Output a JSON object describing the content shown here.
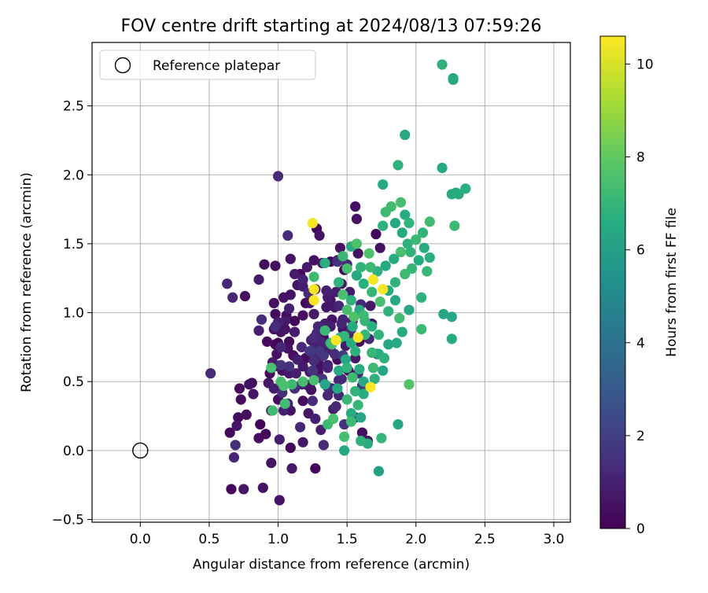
{
  "chart_data": {
    "type": "scatter",
    "title": "FOV centre drift starting at 2024/08/13 07:59:26",
    "xlabel": "Angular distance from reference (arcmin)",
    "ylabel": "Rotation from reference (arcmin)",
    "xlim": [
      -0.35,
      3.12
    ],
    "ylim": [
      -0.52,
      2.96
    ],
    "x_ticks": [
      0.0,
      0.5,
      1.0,
      1.5,
      2.0,
      2.5,
      3.0
    ],
    "y_ticks": [
      -0.5,
      0.0,
      0.5,
      1.0,
      1.5,
      2.0,
      2.5
    ],
    "x_tick_labels": [
      "0.0",
      "0.5",
      "1.0",
      "1.5",
      "2.0",
      "2.5",
      "3.0"
    ],
    "y_tick_labels": [
      "−0.5",
      "0.0",
      "0.5",
      "1.0",
      "1.5",
      "2.0",
      "2.5"
    ],
    "grid": true,
    "legend": {
      "placement": "top-left",
      "entries": [
        "Reference platepar"
      ]
    },
    "reference_point": {
      "x": 0.0,
      "y": 0.0,
      "label": "Reference platepar"
    },
    "colorbar": {
      "label": "Hours from first FF file",
      "range": [
        0,
        10.6
      ],
      "ticks": [
        0,
        2,
        4,
        6,
        8,
        10
      ],
      "tick_labels": [
        "0",
        "2",
        "4",
        "6",
        "8",
        "10"
      ],
      "colormap": "viridis"
    },
    "points": [
      [
        1.26,
        0.55,
        0.9
      ],
      [
        1.26,
        0.65,
        1.4
      ],
      [
        0.98,
        0.9,
        1.4
      ],
      [
        0.88,
        0.95,
        1.4
      ],
      [
        1.3,
        0.61,
        0.5
      ],
      [
        1.31,
        0.68,
        0.9
      ],
      [
        0.97,
        0.61,
        0.2
      ],
      [
        1.23,
        0.46,
        0.6
      ],
      [
        1.38,
        0.9,
        0.9
      ],
      [
        1.29,
        0.64,
        0.2
      ],
      [
        1.24,
        0.8,
        0.9
      ],
      [
        1.23,
        0.71,
        0.1
      ],
      [
        1.08,
        0.79,
        0.2
      ],
      [
        1.02,
        0.62,
        1.6
      ],
      [
        1.26,
        0.7,
        1.1
      ],
      [
        1.28,
        0.74,
        0.5
      ],
      [
        1.41,
        0.7,
        1.4
      ],
      [
        1.28,
        0.8,
        0.9
      ],
      [
        1.25,
        0.73,
        1.3
      ],
      [
        1.12,
        0.86,
        0.9
      ],
      [
        1.26,
        0.82,
        1.3
      ],
      [
        1.43,
        0.66,
        0.3
      ],
      [
        1.17,
        0.75,
        1.3
      ],
      [
        1.23,
        0.72,
        1.8
      ],
      [
        1.05,
        0.88,
        0.6
      ],
      [
        1.17,
        0.48,
        1.0
      ],
      [
        1.34,
        0.92,
        0.8
      ],
      [
        1.38,
        0.73,
        1.0
      ],
      [
        1.33,
        0.82,
        0.1
      ],
      [
        1.31,
        0.79,
        1.1
      ],
      [
        1.28,
        0.85,
        1.2
      ],
      [
        0.73,
        0.37,
        0.3
      ],
      [
        0.82,
        0.41,
        0.6
      ],
      [
        0.95,
        0.29,
        0.9
      ],
      [
        0.91,
        0.12,
        0.2
      ],
      [
        0.7,
        0.18,
        0.6
      ],
      [
        1.46,
        0.52,
        1.2
      ],
      [
        1.36,
        0.4,
        1.2
      ],
      [
        1.18,
        0.61,
        0.7
      ],
      [
        1.2,
        0.67,
        0.4
      ],
      [
        1.02,
        0.75,
        1.2
      ],
      [
        1.12,
        0.94,
        0.1
      ],
      [
        1.23,
        1.07,
        0.5
      ],
      [
        1.26,
        0.99,
        0.7
      ],
      [
        1.13,
        0.56,
        0.9
      ],
      [
        1.47,
        0.95,
        1.1
      ],
      [
        1.36,
        1.11,
        0.8
      ],
      [
        1.25,
        0.58,
        1.6
      ],
      [
        1.33,
        0.69,
        1.7
      ],
      [
        1.52,
        0.82,
        1.0
      ],
      [
        1.29,
        0.57,
        0.4
      ],
      [
        1.24,
        0.72,
        1.0
      ],
      [
        1.29,
        0.9,
        1.2
      ],
      [
        1.07,
        0.74,
        0.5
      ],
      [
        1.08,
        0.61,
        1.5
      ],
      [
        1.11,
        0.69,
        0.4
      ],
      [
        1.23,
        0.57,
        0.8
      ],
      [
        1.39,
        0.95,
        0.6
      ],
      [
        1.32,
        0.77,
        1.0
      ],
      [
        1.3,
        0.72,
        1.7
      ],
      [
        0.72,
        0.45,
        0.3
      ],
      [
        0.79,
        0.48,
        0.5
      ],
      [
        0.93,
        0.49,
        0.7
      ],
      [
        1.0,
        0.37,
        0.4
      ],
      [
        1.07,
        0.34,
        1.0
      ],
      [
        1.16,
        0.17,
        1.2
      ],
      [
        0.69,
        0.04,
        1.4
      ],
      [
        0.97,
        0.88,
        0.5
      ],
      [
        1.0,
        0.93,
        1.0
      ],
      [
        1.06,
        0.98,
        0.4
      ],
      [
        1.2,
        1.07,
        0.2
      ],
      [
        1.18,
        1.19,
        0.9
      ],
      [
        1.22,
        1.14,
        1.3
      ],
      [
        1.35,
        1.04,
        0.7
      ],
      [
        1.38,
        1.09,
        0.5
      ],
      [
        1.42,
        1.15,
        0.9
      ],
      [
        1.46,
        1.21,
        0.7
      ],
      [
        1.44,
        1.05,
        1.1
      ],
      [
        1.47,
        0.88,
        0.5
      ],
      [
        1.36,
        0.6,
        1.1
      ],
      [
        1.32,
        0.52,
        1.6
      ],
      [
        1.24,
        0.44,
        0.4
      ],
      [
        1.18,
        0.36,
        0.3
      ],
      [
        1.22,
        0.27,
        0.7
      ],
      [
        1.27,
        0.23,
        1.0
      ],
      [
        1.31,
        0.15,
        0.9
      ],
      [
        1.33,
        0.04,
        1.3
      ],
      [
        1.09,
        0.02,
        0.2
      ],
      [
        1.01,
        0.08,
        0.9
      ],
      [
        0.86,
        0.09,
        0.4
      ],
      [
        0.65,
        0.13,
        0.2
      ],
      [
        0.71,
        0.24,
        0.3
      ],
      [
        1.4,
        0.3,
        0.9
      ],
      [
        1.44,
        0.4,
        1.1
      ],
      [
        1.51,
        0.58,
        0.3
      ],
      [
        1.56,
        0.67,
        0.7
      ],
      [
        1.59,
        0.79,
        0.4
      ],
      [
        1.54,
        0.94,
        0.9
      ],
      [
        1.6,
        1.06,
        1.2
      ],
      [
        1.52,
        1.15,
        0.8
      ],
      [
        1.48,
        1.31,
        0.3
      ],
      [
        1.43,
        1.38,
        0.6
      ],
      [
        1.38,
        1.37,
        0.2
      ],
      [
        1.32,
        1.36,
        0.7
      ],
      [
        1.26,
        1.38,
        0.5
      ],
      [
        1.21,
        1.33,
        0.8
      ],
      [
        1.18,
        1.24,
        1.0
      ],
      [
        1.14,
        1.2,
        0.6
      ],
      [
        1.09,
        1.13,
        0.5
      ],
      [
        1.08,
        1.03,
        1.0
      ],
      [
        1.05,
        0.94,
        0.8
      ],
      [
        1.02,
        0.86,
        0.6
      ],
      [
        1.0,
        0.78,
        0.2
      ],
      [
        0.99,
        0.7,
        0.5
      ],
      [
        0.96,
        0.64,
        0.8
      ],
      [
        0.94,
        0.56,
        0.3
      ],
      [
        0.97,
        0.45,
        0.9
      ],
      [
        1.03,
        0.42,
        1.4
      ],
      [
        1.09,
        0.29,
        0.6
      ],
      [
        0.92,
        0.79,
        0.3
      ],
      [
        0.86,
        0.87,
        1.0
      ],
      [
        0.97,
        1.07,
        0.4
      ],
      [
        1.04,
        1.11,
        0.6
      ],
      [
        0.76,
        1.12,
        0.4
      ],
      [
        0.67,
        1.11,
        1.2
      ],
      [
        0.63,
        1.21,
        1.1
      ],
      [
        0.86,
        1.24,
        0.8
      ],
      [
        0.98,
        1.34,
        0.4
      ],
      [
        1.09,
        1.39,
        0.6
      ],
      [
        1.07,
        1.56,
        1.3
      ],
      [
        1.28,
        1.61,
        0.2
      ],
      [
        1.3,
        1.56,
        0.6
      ],
      [
        1.45,
        1.47,
        0.5
      ],
      [
        1.43,
        1.37,
        1.5
      ],
      [
        1.5,
        1.35,
        1.3
      ],
      [
        1.58,
        1.43,
        0.5
      ],
      [
        1.57,
        1.68,
        0.5
      ],
      [
        1.56,
        1.77,
        0.5
      ],
      [
        1.71,
        1.57,
        0.2
      ],
      [
        1.74,
        1.47,
        0.5
      ],
      [
        1.67,
        1.05,
        0.7
      ],
      [
        1.68,
        0.92,
        0.5
      ],
      [
        1.66,
        0.81,
        1.2
      ],
      [
        1.72,
        0.7,
        1.4
      ],
      [
        1.58,
        0.56,
        1.1
      ],
      [
        1.61,
        0.47,
        1.6
      ],
      [
        1.44,
        0.51,
        1.1
      ],
      [
        1.39,
        0.45,
        0.8
      ],
      [
        1.36,
        0.62,
        0.9
      ],
      [
        1.34,
        0.76,
        0.2
      ],
      [
        1.49,
        0.76,
        0.8
      ],
      [
        1.46,
        0.92,
        1.1
      ],
      [
        1.41,
        1.04,
        0.7
      ],
      [
        1.35,
        1.16,
        1.0
      ],
      [
        1.27,
        1.17,
        0.4
      ],
      [
        1.16,
        1.28,
        0.2
      ],
      [
        1.12,
        1.28,
        0.8
      ],
      [
        0.9,
        1.35,
        0.3
      ],
      [
        1.0,
        1.99,
        1.3
      ],
      [
        0.98,
        0.99,
        0.3
      ],
      [
        1.18,
        0.98,
        0.5
      ],
      [
        1.14,
        0.66,
        0.9
      ],
      [
        1.03,
        0.58,
        0.5
      ],
      [
        1.2,
        0.48,
        0.6
      ],
      [
        0.98,
        0.77,
        0.2
      ],
      [
        0.77,
        0.26,
        0.4
      ],
      [
        0.81,
        0.49,
        0.3
      ],
      [
        0.87,
        0.19,
        0.1
      ],
      [
        0.89,
        -0.27,
        0.6
      ],
      [
        0.95,
        -0.09,
        0.6
      ],
      [
        1.01,
        -0.36,
        0.6
      ],
      [
        1.04,
        0.29,
        0.9
      ],
      [
        1.1,
        -0.13,
        0.7
      ],
      [
        0.75,
        -0.28,
        0.7
      ],
      [
        0.66,
        -0.28,
        0.2
      ],
      [
        0.68,
        -0.05,
        1.2
      ],
      [
        0.51,
        0.56,
        1.3
      ],
      [
        1.27,
        -0.13,
        0.2
      ],
      [
        1.18,
        0.06,
        0.7
      ],
      [
        1.25,
        0.36,
        1.3
      ],
      [
        1.36,
        0.46,
        1.4
      ],
      [
        1.42,
        0.32,
        1.2
      ],
      [
        1.48,
        0.19,
        1.5
      ],
      [
        1.56,
        0.24,
        1.0
      ],
      [
        1.61,
        0.13,
        0.4
      ],
      [
        1.65,
        0.07,
        0.6
      ],
      [
        1.53,
        0.88,
        1.4
      ],
      [
        1.47,
        0.69,
        1.9
      ],
      [
        1.12,
        0.45,
        1.4
      ],
      [
        1.08,
        0.56,
        0.7
      ],
      [
        1.47,
        1.13,
        7.5
      ],
      [
        1.53,
        1.09,
        6.8
      ],
      [
        1.59,
        1.02,
        6.5
      ],
      [
        1.62,
        0.98,
        7.2
      ],
      [
        1.54,
        0.9,
        6.6
      ],
      [
        1.45,
        0.82,
        6.9
      ],
      [
        1.39,
        0.77,
        7.3
      ],
      [
        1.49,
        0.66,
        6.4
      ],
      [
        1.56,
        0.72,
        6.8
      ],
      [
        1.63,
        0.84,
        7.0
      ],
      [
        1.68,
        0.9,
        6.7
      ],
      [
        1.73,
        0.84,
        6.9
      ],
      [
        1.8,
        0.77,
        6.3
      ],
      [
        1.86,
        0.78,
        6.6
      ],
      [
        1.9,
        0.86,
        6.5
      ],
      [
        1.88,
        0.96,
        7.3
      ],
      [
        1.8,
        1.01,
        6.8
      ],
      [
        1.74,
        1.08,
        7.5
      ],
      [
        1.68,
        1.15,
        7.0
      ],
      [
        1.62,
        1.21,
        6.7
      ],
      [
        1.57,
        1.27,
        6.4
      ],
      [
        1.5,
        1.32,
        7.4
      ],
      [
        1.47,
        1.41,
        7.1
      ],
      [
        1.53,
        1.48,
        6.6
      ],
      [
        1.6,
        1.33,
        6.9
      ],
      [
        1.67,
        1.33,
        7.2
      ],
      [
        1.72,
        1.3,
        6.8
      ],
      [
        1.78,
        1.34,
        6.5
      ],
      [
        1.84,
        1.39,
        6.6
      ],
      [
        1.89,
        1.44,
        7.5
      ],
      [
        1.94,
        1.5,
        6.8
      ],
      [
        2.0,
        1.53,
        7.2
      ],
      [
        2.05,
        1.58,
        6.9
      ],
      [
        2.1,
        1.66,
        7.3
      ],
      [
        2.06,
        1.47,
        6.6
      ],
      [
        2.02,
        1.38,
        6.5
      ],
      [
        1.97,
        1.32,
        7.0
      ],
      [
        1.92,
        1.28,
        7.2
      ],
      [
        1.85,
        1.22,
        6.8
      ],
      [
        1.8,
        1.16,
        6.5
      ],
      [
        1.85,
        1.09,
        6.4
      ],
      [
        1.95,
        1.02,
        6.3
      ],
      [
        2.04,
        1.11,
        6.8
      ],
      [
        2.08,
        1.3,
        7.1
      ],
      [
        2.1,
        1.4,
        6.7
      ],
      [
        1.96,
        1.44,
        6.9
      ],
      [
        1.9,
        1.58,
        6.4
      ],
      [
        1.85,
        1.65,
        6.5
      ],
      [
        1.78,
        1.73,
        7.2
      ],
      [
        1.76,
        1.63,
        6.8
      ],
      [
        1.82,
        1.77,
        7.3
      ],
      [
        1.89,
        1.8,
        7.4
      ],
      [
        1.92,
        1.71,
        6.6
      ],
      [
        1.95,
        1.65,
        6.9
      ],
      [
        1.76,
        1.93,
        6.5
      ],
      [
        1.87,
        2.07,
        6.8
      ],
      [
        1.92,
        2.29,
        6.4
      ],
      [
        2.19,
        2.05,
        6.4
      ],
      [
        2.26,
        1.86,
        6.6
      ],
      [
        2.29,
        1.87,
        6.2
      ],
      [
        2.31,
        1.86,
        6.5
      ],
      [
        2.36,
        1.9,
        6.7
      ],
      [
        2.28,
        1.63,
        7.2
      ],
      [
        2.27,
        2.69,
        6.3
      ],
      [
        2.27,
        2.7,
        6.4
      ],
      [
        2.19,
        2.8,
        6.8
      ],
      [
        2.2,
        0.99,
        6.3
      ],
      [
        2.26,
        0.97,
        6.3
      ],
      [
        2.26,
        0.81,
        6.6
      ],
      [
        2.04,
        0.88,
        7.2
      ],
      [
        1.95,
        0.48,
        7.7
      ],
      [
        1.87,
        0.19,
        6.3
      ],
      [
        1.73,
        -0.15,
        6.1
      ],
      [
        1.75,
        0.09,
        7.0
      ],
      [
        1.65,
        0.05,
        6.6
      ],
      [
        1.6,
        0.07,
        6.9
      ],
      [
        1.53,
        0.21,
        7.2
      ],
      [
        1.48,
        0.1,
        7.4
      ],
      [
        1.48,
        0.0,
        6.4
      ],
      [
        1.36,
        0.19,
        7.2
      ],
      [
        1.4,
        0.23,
        7.5
      ],
      [
        1.53,
        0.27,
        6.6
      ],
      [
        1.6,
        0.24,
        6.3
      ],
      [
        1.58,
        0.33,
        7.0
      ],
      [
        1.62,
        0.41,
        6.6
      ],
      [
        1.7,
        0.52,
        6.8
      ],
      [
        1.76,
        0.58,
        6.3
      ],
      [
        1.62,
        0.5,
        6.4
      ],
      [
        1.56,
        0.43,
        6.9
      ],
      [
        1.5,
        0.37,
        7.1
      ],
      [
        1.43,
        0.45,
        6.4
      ],
      [
        1.34,
        0.48,
        6.3
      ],
      [
        1.26,
        0.51,
        7.5
      ],
      [
        1.18,
        0.5,
        7.4
      ],
      [
        1.1,
        0.48,
        7.2
      ],
      [
        1.04,
        0.47,
        7.5
      ],
      [
        1.05,
        0.34,
        7.3
      ],
      [
        0.96,
        0.29,
        7.3
      ],
      [
        0.95,
        0.6,
        7.5
      ],
      [
        1.02,
        0.5,
        7.4
      ],
      [
        1.57,
        1.5,
        7.6
      ],
      [
        1.66,
        1.43,
        7.6
      ],
      [
        1.44,
        1.22,
        6.8
      ],
      [
        1.34,
        1.36,
        6.7
      ],
      [
        1.26,
        1.26,
        7.2
      ],
      [
        1.34,
        0.87,
        7.1
      ],
      [
        1.38,
        0.78,
        7.0
      ],
      [
        1.5,
        1.02,
        7.4
      ],
      [
        1.55,
        0.97,
        7.6
      ],
      [
        1.63,
        0.94,
        7.0
      ],
      [
        1.69,
        0.6,
        7.2
      ],
      [
        1.73,
        0.7,
        6.5
      ],
      [
        1.77,
        0.67,
        6.8
      ],
      [
        1.68,
        0.71,
        7.1
      ],
      [
        1.59,
        0.59,
        6.6
      ],
      [
        1.54,
        0.53,
        7.2
      ],
      [
        1.5,
        0.6,
        6.9
      ],
      [
        1.44,
        0.58,
        6.4
      ],
      [
        1.48,
        0.83,
        7.0
      ],
      [
        1.53,
        0.78,
        6.5
      ],
      [
        1.25,
        1.65,
        10.5
      ],
      [
        1.26,
        1.17,
        10.5
      ],
      [
        1.26,
        1.09,
        10.5
      ],
      [
        1.42,
        0.8,
        10.5
      ],
      [
        1.58,
        0.82,
        10.5
      ],
      [
        1.69,
        1.24,
        10.5
      ],
      [
        1.76,
        1.17,
        10.5
      ],
      [
        1.67,
        0.46,
        10.5
      ]
    ]
  }
}
